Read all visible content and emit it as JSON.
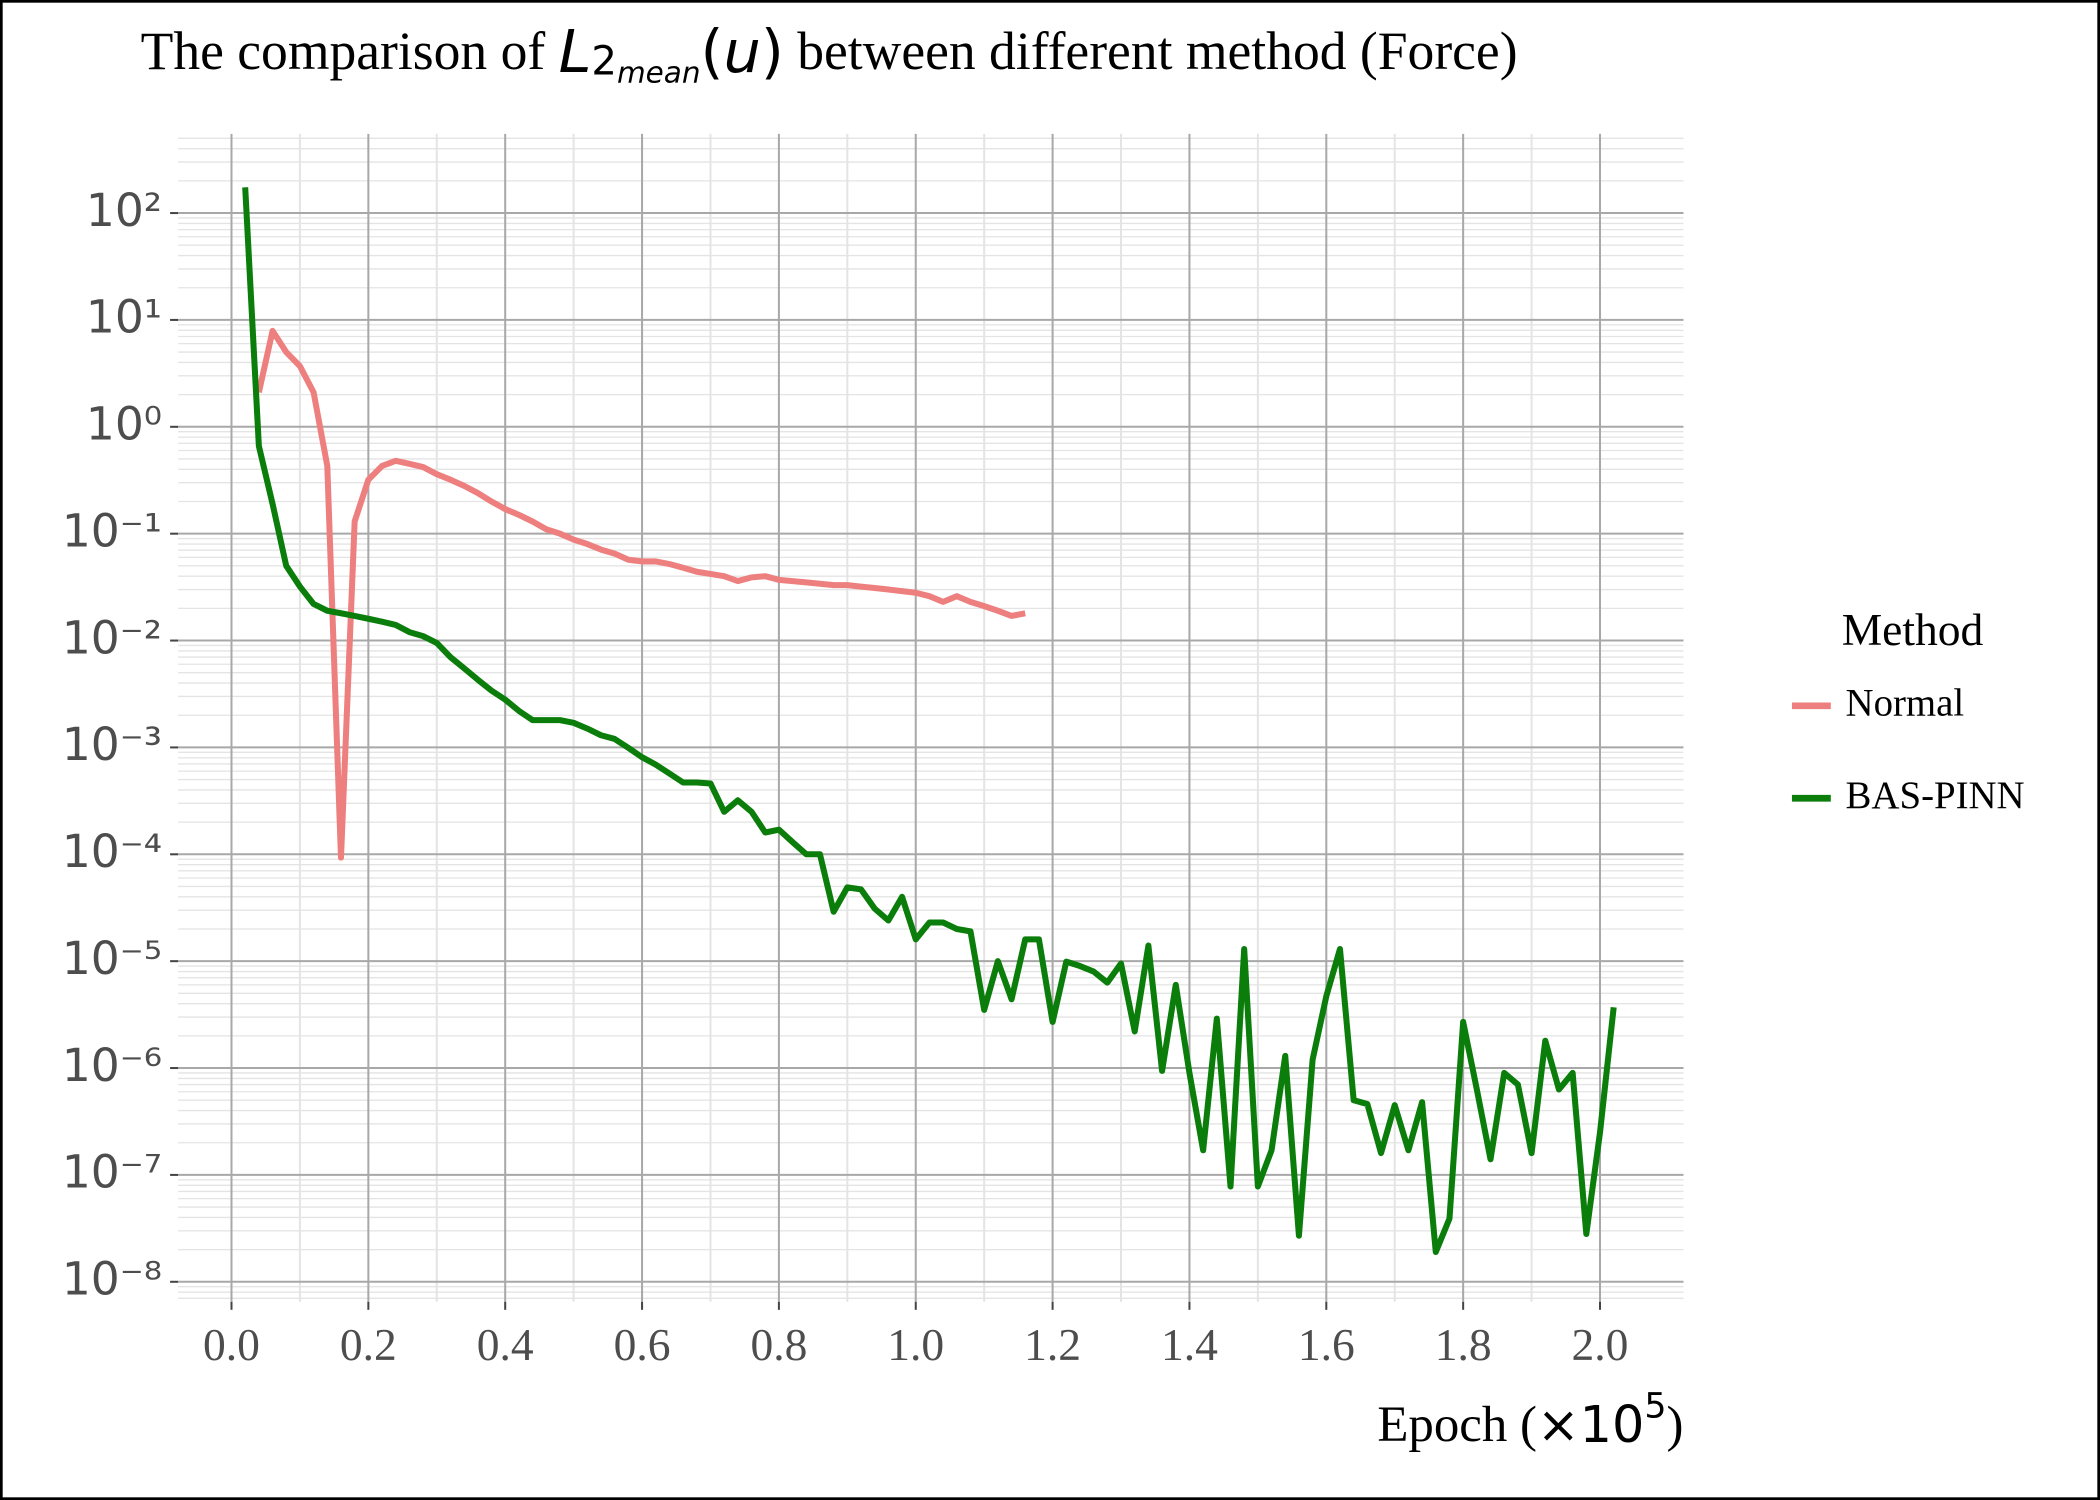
{
  "chart_data": {
    "type": "line",
    "title": [
      "The comparison of ",
      "L",
      "2",
      "mean",
      "(",
      "u",
      ")",
      " between different method (Force)"
    ],
    "x_label": [
      "Epoch (",
      "×10",
      "5",
      ")"
    ],
    "legend_title": "Method",
    "log_y": true,
    "grid": true,
    "minor_grid": true,
    "legend_position": "right",
    "xlim": [
      -0.078,
      2.122
    ],
    "xticks": [
      {
        "value": 0,
        "label": "0.0"
      },
      0.2,
      0.4,
      0.6,
      0.8,
      {
        "value": 1,
        "label": "1.0"
      },
      1.2,
      1.4,
      1.6,
      1.8,
      {
        "value": 2,
        "label": "2.0"
      }
    ],
    "ylim": [
      6.5e-09,
      550
    ],
    "yticks": [
      {
        "value": 100,
        "label": "10²"
      },
      {
        "value": 10,
        "label": "10¹"
      },
      {
        "value": 1,
        "label": "10⁰"
      },
      {
        "value": 0.1,
        "label": "10⁻¹"
      },
      {
        "value": 0.01,
        "label": "10⁻²"
      },
      {
        "value": 0.001,
        "label": "10⁻³"
      },
      {
        "value": 0.0001,
        "label": "10⁻⁴"
      },
      {
        "value": 1e-05,
        "label": "10⁻⁵"
      },
      {
        "value": 1e-06,
        "label": "10⁻⁶"
      },
      {
        "value": 1e-07,
        "label": "10⁻⁷"
      },
      {
        "value": 1e-08,
        "label": "10⁻⁸"
      }
    ],
    "series": [
      {
        "name": "Normal",
        "color": "#ee7f7f",
        "x": [
          0.04,
          0.06,
          0.08,
          0.1,
          0.12,
          0.14,
          0.16,
          0.18,
          0.2,
          0.22,
          0.24,
          0.26,
          0.28,
          0.3,
          0.32,
          0.34,
          0.36,
          0.38,
          0.4,
          0.42,
          0.44,
          0.46,
          0.48,
          0.5,
          0.52,
          0.54,
          0.56,
          0.58,
          0.6,
          0.62,
          0.64,
          0.66,
          0.68,
          0.7,
          0.72,
          0.74,
          0.76,
          0.78,
          0.8,
          0.82,
          0.84,
          0.86,
          0.88,
          0.9,
          0.92,
          0.94,
          0.96,
          0.98,
          1.0,
          1.02,
          1.04,
          1.06,
          1.08,
          1.1,
          1.12,
          1.14,
          1.16
        ],
        "values": [
          2.1,
          7.9,
          5.0,
          3.7,
          2.1,
          0.43,
          9.3e-05,
          0.13,
          0.32,
          0.43,
          0.48,
          0.45,
          0.42,
          0.36,
          0.32,
          0.28,
          0.24,
          0.2,
          0.17,
          0.15,
          0.13,
          0.11,
          0.1,
          0.088,
          0.08,
          0.071,
          0.065,
          0.057,
          0.055,
          0.055,
          0.052,
          0.048,
          0.044,
          0.042,
          0.04,
          0.036,
          0.039,
          0.04,
          0.037,
          0.036,
          0.035,
          0.034,
          0.033,
          0.033,
          0.032,
          0.031,
          0.03,
          0.029,
          0.028,
          0.026,
          0.023,
          0.026,
          0.023,
          0.021,
          0.019,
          0.017,
          0.018
        ]
      },
      {
        "name": "BAS-PINN",
        "color": "#0b7d0b",
        "x": [
          0.02,
          0.04,
          0.06,
          0.08,
          0.1,
          0.12,
          0.14,
          0.16,
          0.18,
          0.2,
          0.22,
          0.24,
          0.26,
          0.28,
          0.3,
          0.32,
          0.34,
          0.36,
          0.38,
          0.4,
          0.42,
          0.44,
          0.46,
          0.48,
          0.5,
          0.52,
          0.54,
          0.56,
          0.58,
          0.6,
          0.62,
          0.64,
          0.66,
          0.68,
          0.7,
          0.72,
          0.74,
          0.76,
          0.78,
          0.8,
          0.82,
          0.84,
          0.86,
          0.88,
          0.9,
          0.92,
          0.94,
          0.96,
          0.98,
          1.0,
          1.02,
          1.04,
          1.06,
          1.08,
          1.1,
          1.12,
          1.14,
          1.16,
          1.18,
          1.2,
          1.22,
          1.24,
          1.26,
          1.28,
          1.3,
          1.32,
          1.34,
          1.36,
          1.38,
          1.4,
          1.42,
          1.44,
          1.46,
          1.48,
          1.5,
          1.52,
          1.54,
          1.56,
          1.58,
          1.6,
          1.62,
          1.64,
          1.66,
          1.68,
          1.7,
          1.72,
          1.74,
          1.76,
          1.78,
          1.8,
          1.82,
          1.84,
          1.86,
          1.88,
          1.9,
          1.92,
          1.94,
          1.96,
          1.98,
          2.0,
          2.02
        ],
        "values": [
          174,
          0.66,
          0.19,
          0.05,
          0.032,
          0.022,
          0.019,
          0.018,
          0.017,
          0.016,
          0.015,
          0.014,
          0.012,
          0.011,
          0.0095,
          0.007,
          0.0055,
          0.0043,
          0.0034,
          0.0028,
          0.0022,
          0.0018,
          0.0018,
          0.0018,
          0.0017,
          0.0015,
          0.0013,
          0.0012,
          0.00099,
          0.00081,
          0.00069,
          0.00057,
          0.00047,
          0.00047,
          0.00046,
          0.00025,
          0.00032,
          0.00025,
          0.00016,
          0.00017,
          0.00013,
          0.0001,
          0.0001,
          2.9e-05,
          4.9e-05,
          4.7e-05,
          3.1e-05,
          2.4e-05,
          4e-05,
          1.6e-05,
          2.3e-05,
          2.3e-05,
          2e-05,
          1.9e-05,
          3.5e-06,
          1e-05,
          4.4e-06,
          1.6e-05,
          1.6e-05,
          2.7e-06,
          9.9e-06,
          9e-06,
          8e-06,
          6.3e-06,
          9.5e-06,
          2.2e-06,
          1.4e-05,
          9.4e-07,
          6e-06,
          9e-07,
          1.7e-07,
          2.9e-06,
          7.8e-08,
          1.3e-05,
          7.8e-08,
          1.7e-07,
          1.3e-06,
          2.7e-08,
          1.2e-06,
          4.7e-06,
          1.3e-05,
          5e-07,
          4.6e-07,
          1.6e-07,
          4.5e-07,
          1.7e-07,
          4.8e-07,
          1.9e-08,
          3.9e-08,
          2.7e-06,
          6.3e-07,
          1.4e-07,
          9e-07,
          7e-07,
          1.6e-07,
          1.8e-06,
          6.3e-07,
          9e-07,
          2.8e-08,
          2.5e-07,
          3.7e-06
        ]
      }
    ]
  }
}
